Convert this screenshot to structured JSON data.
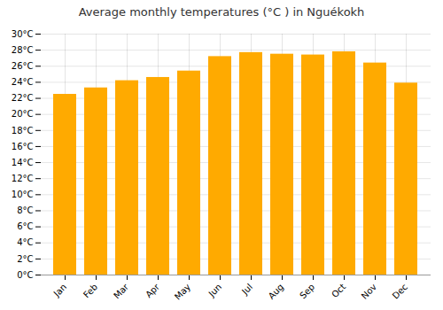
{
  "chart_data": {
    "type": "bar",
    "title": "Average monthly temperatures (°C ) in Nguékokh",
    "categories": [
      "Jan",
      "Feb",
      "Mar",
      "Apr",
      "May",
      "Jun",
      "Jul",
      "Aug",
      "Sep",
      "Oct",
      "Nov",
      "Dec"
    ],
    "values": [
      22.5,
      23.3,
      24.2,
      24.6,
      25.4,
      27.2,
      27.7,
      27.5,
      27.4,
      27.8,
      26.4,
      23.9
    ],
    "color": "#FFAA00",
    "ylim": [
      0,
      30
    ],
    "yticks": [
      {
        "value": 0,
        "label": "0°C"
      },
      {
        "value": 2,
        "label": "2°C"
      },
      {
        "value": 4,
        "label": "4°C"
      },
      {
        "value": 6,
        "label": "6°C"
      },
      {
        "value": 8,
        "label": "8°C"
      },
      {
        "value": 10,
        "label": "10°C"
      },
      {
        "value": 12,
        "label": "12°C"
      },
      {
        "value": 14,
        "label": "14°C"
      },
      {
        "value": 16,
        "label": "16°C"
      },
      {
        "value": 18,
        "label": "18°C"
      },
      {
        "value": 20,
        "label": "20°C"
      },
      {
        "value": 22,
        "label": "22°C"
      },
      {
        "value": 24,
        "label": "24°C"
      },
      {
        "value": 26,
        "label": "26°C"
      },
      {
        "value": 28,
        "label": "28°C"
      },
      {
        "value": 30,
        "label": "30°C"
      }
    ],
    "grid": true
  }
}
